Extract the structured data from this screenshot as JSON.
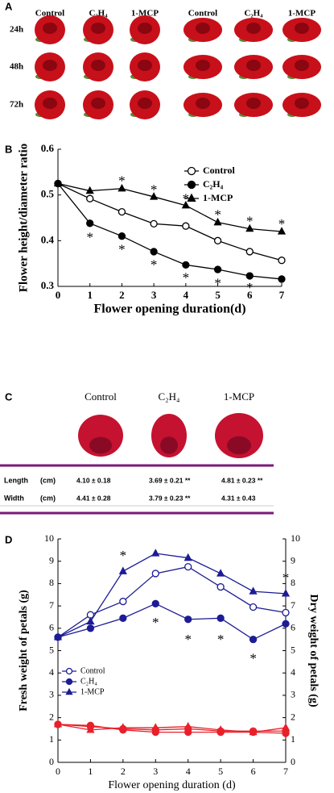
{
  "panels": {
    "a": {
      "label": "A",
      "columns": [
        "Control",
        "C₂H₄",
        "1-MCP",
        "Control",
        "C₂H₄",
        "1-MCP"
      ],
      "rows": [
        "24h",
        "48h",
        "72h"
      ]
    },
    "c": {
      "label": "C",
      "columns": [
        "Control",
        "C₂H₄",
        "1-MCP"
      ],
      "rows": [
        {
          "label": "Length",
          "unit": "(cm)",
          "cells": [
            "4.10 ± 0.18",
            "3.69 ± 0.21 **",
            "4.81 ± 0.23 **"
          ]
        },
        {
          "label": "Width",
          "unit": "(cm)",
          "cells": [
            "4.41 ± 0.28",
            "3.79 ± 0.23 **",
            "4.31 ± 0.43"
          ]
        }
      ]
    }
  },
  "chart_data": [
    {
      "type": "line",
      "label": "B",
      "xlabel": "Flower opening duration(d)",
      "ylabel": "Flower height/diameter ratio",
      "x": [
        0,
        1,
        2,
        3,
        4,
        5,
        6,
        7
      ],
      "xlim": [
        0,
        7
      ],
      "xticks": [
        0,
        1,
        2,
        3,
        4,
        5,
        6,
        7
      ],
      "ylim": [
        0.3,
        0.6
      ],
      "yticks": [
        0.3,
        0.4,
        0.5,
        0.6
      ],
      "legend": "upper right",
      "series": [
        {
          "name": "Control",
          "color": "#000000",
          "marker": "open-circle",
          "values": [
            0.525,
            0.492,
            0.463,
            0.437,
            0.432,
            0.4,
            0.376,
            0.357
          ]
        },
        {
          "name": "C₂H₄",
          "color": "#000000",
          "marker": "filled-circle",
          "values": [
            0.525,
            0.438,
            0.41,
            0.376,
            0.347,
            0.337,
            0.323,
            0.316
          ]
        },
        {
          "name": "1-MCP",
          "color": "#000000",
          "marker": "triangle",
          "values": [
            0.525,
            0.509,
            0.514,
            0.496,
            0.477,
            0.44,
            0.426,
            0.42
          ]
        }
      ],
      "annotations": [
        {
          "text": "*",
          "x": 2,
          "y": 0.535
        },
        {
          "text": "*",
          "x": 3,
          "y": 0.516
        },
        {
          "text": "*",
          "x": 4,
          "y": 0.497
        },
        {
          "text": "*",
          "x": 5,
          "y": 0.461
        },
        {
          "text": "*",
          "x": 6,
          "y": 0.447
        },
        {
          "text": "*",
          "x": 7,
          "y": 0.441
        },
        {
          "text": "*",
          "x": 1,
          "y": 0.412
        },
        {
          "text": "*",
          "x": 2,
          "y": 0.385
        },
        {
          "text": "*",
          "x": 3,
          "y": 0.352
        },
        {
          "text": "*",
          "x": 4,
          "y": 0.324
        },
        {
          "text": "*",
          "x": 5,
          "y": 0.311
        },
        {
          "text": "*",
          "x": 6,
          "y": 0.302
        }
      ]
    },
    {
      "type": "line",
      "label": "D",
      "xlabel": "Flower opening duration (d)",
      "ylabel": "Fresh weight of petals (g)",
      "y2label": "Dry weight of petals (g)",
      "x": [
        0,
        1,
        2,
        3,
        4,
        5,
        6,
        7
      ],
      "xlim": [
        0,
        7
      ],
      "xticks": [
        0,
        1,
        2,
        3,
        4,
        5,
        6,
        7
      ],
      "ylim": [
        0,
        10
      ],
      "yticks": [
        0,
        1,
        2,
        3,
        4,
        5,
        6,
        7,
        8,
        9,
        10
      ],
      "y2lim": [
        0,
        10
      ],
      "y2ticks": [
        0,
        1,
        2,
        3,
        4,
        5,
        6,
        7,
        8,
        9,
        10
      ],
      "legend": "lower left",
      "series": [
        {
          "name": "Control",
          "color": "#1c1c96",
          "marker": "open-circle",
          "values": [
            5.6,
            6.6,
            7.2,
            8.45,
            8.75,
            7.85,
            6.95,
            6.7
          ]
        },
        {
          "name": "C₂H₄",
          "color": "#1c1c96",
          "marker": "filled-circle",
          "values": [
            5.6,
            6.0,
            6.45,
            7.1,
            6.4,
            6.45,
            5.5,
            6.2
          ]
        },
        {
          "name": "1-MCP",
          "color": "#1c1c96",
          "marker": "triangle",
          "values": [
            5.6,
            6.3,
            8.55,
            9.35,
            9.15,
            8.45,
            7.65,
            7.55
          ]
        },
        {
          "color": "#e8202a",
          "marker": "open-circle",
          "axis": "y2",
          "values": [
            1.7,
            1.6,
            1.5,
            1.45,
            1.5,
            1.4,
            1.4,
            1.4
          ]
        },
        {
          "color": "#e8202a",
          "marker": "filled-circle",
          "axis": "y2",
          "values": [
            1.7,
            1.65,
            1.45,
            1.35,
            1.35,
            1.35,
            1.35,
            1.3
          ]
        },
        {
          "color": "#e8202a",
          "marker": "triangle",
          "axis": "y2",
          "values": [
            1.7,
            1.45,
            1.55,
            1.55,
            1.6,
            1.45,
            1.35,
            1.55
          ]
        }
      ],
      "annotations": [
        {
          "text": "*",
          "x": 2,
          "y": 9.35
        },
        {
          "text": "*",
          "x": 3,
          "y": 6.35
        },
        {
          "text": "*",
          "x": 4,
          "y": 5.6
        },
        {
          "text": "*",
          "x": 5,
          "y": 5.6
        },
        {
          "text": "*",
          "x": 6,
          "y": 4.75
        },
        {
          "text": "*",
          "x": 7,
          "y": 8.35
        }
      ]
    }
  ]
}
